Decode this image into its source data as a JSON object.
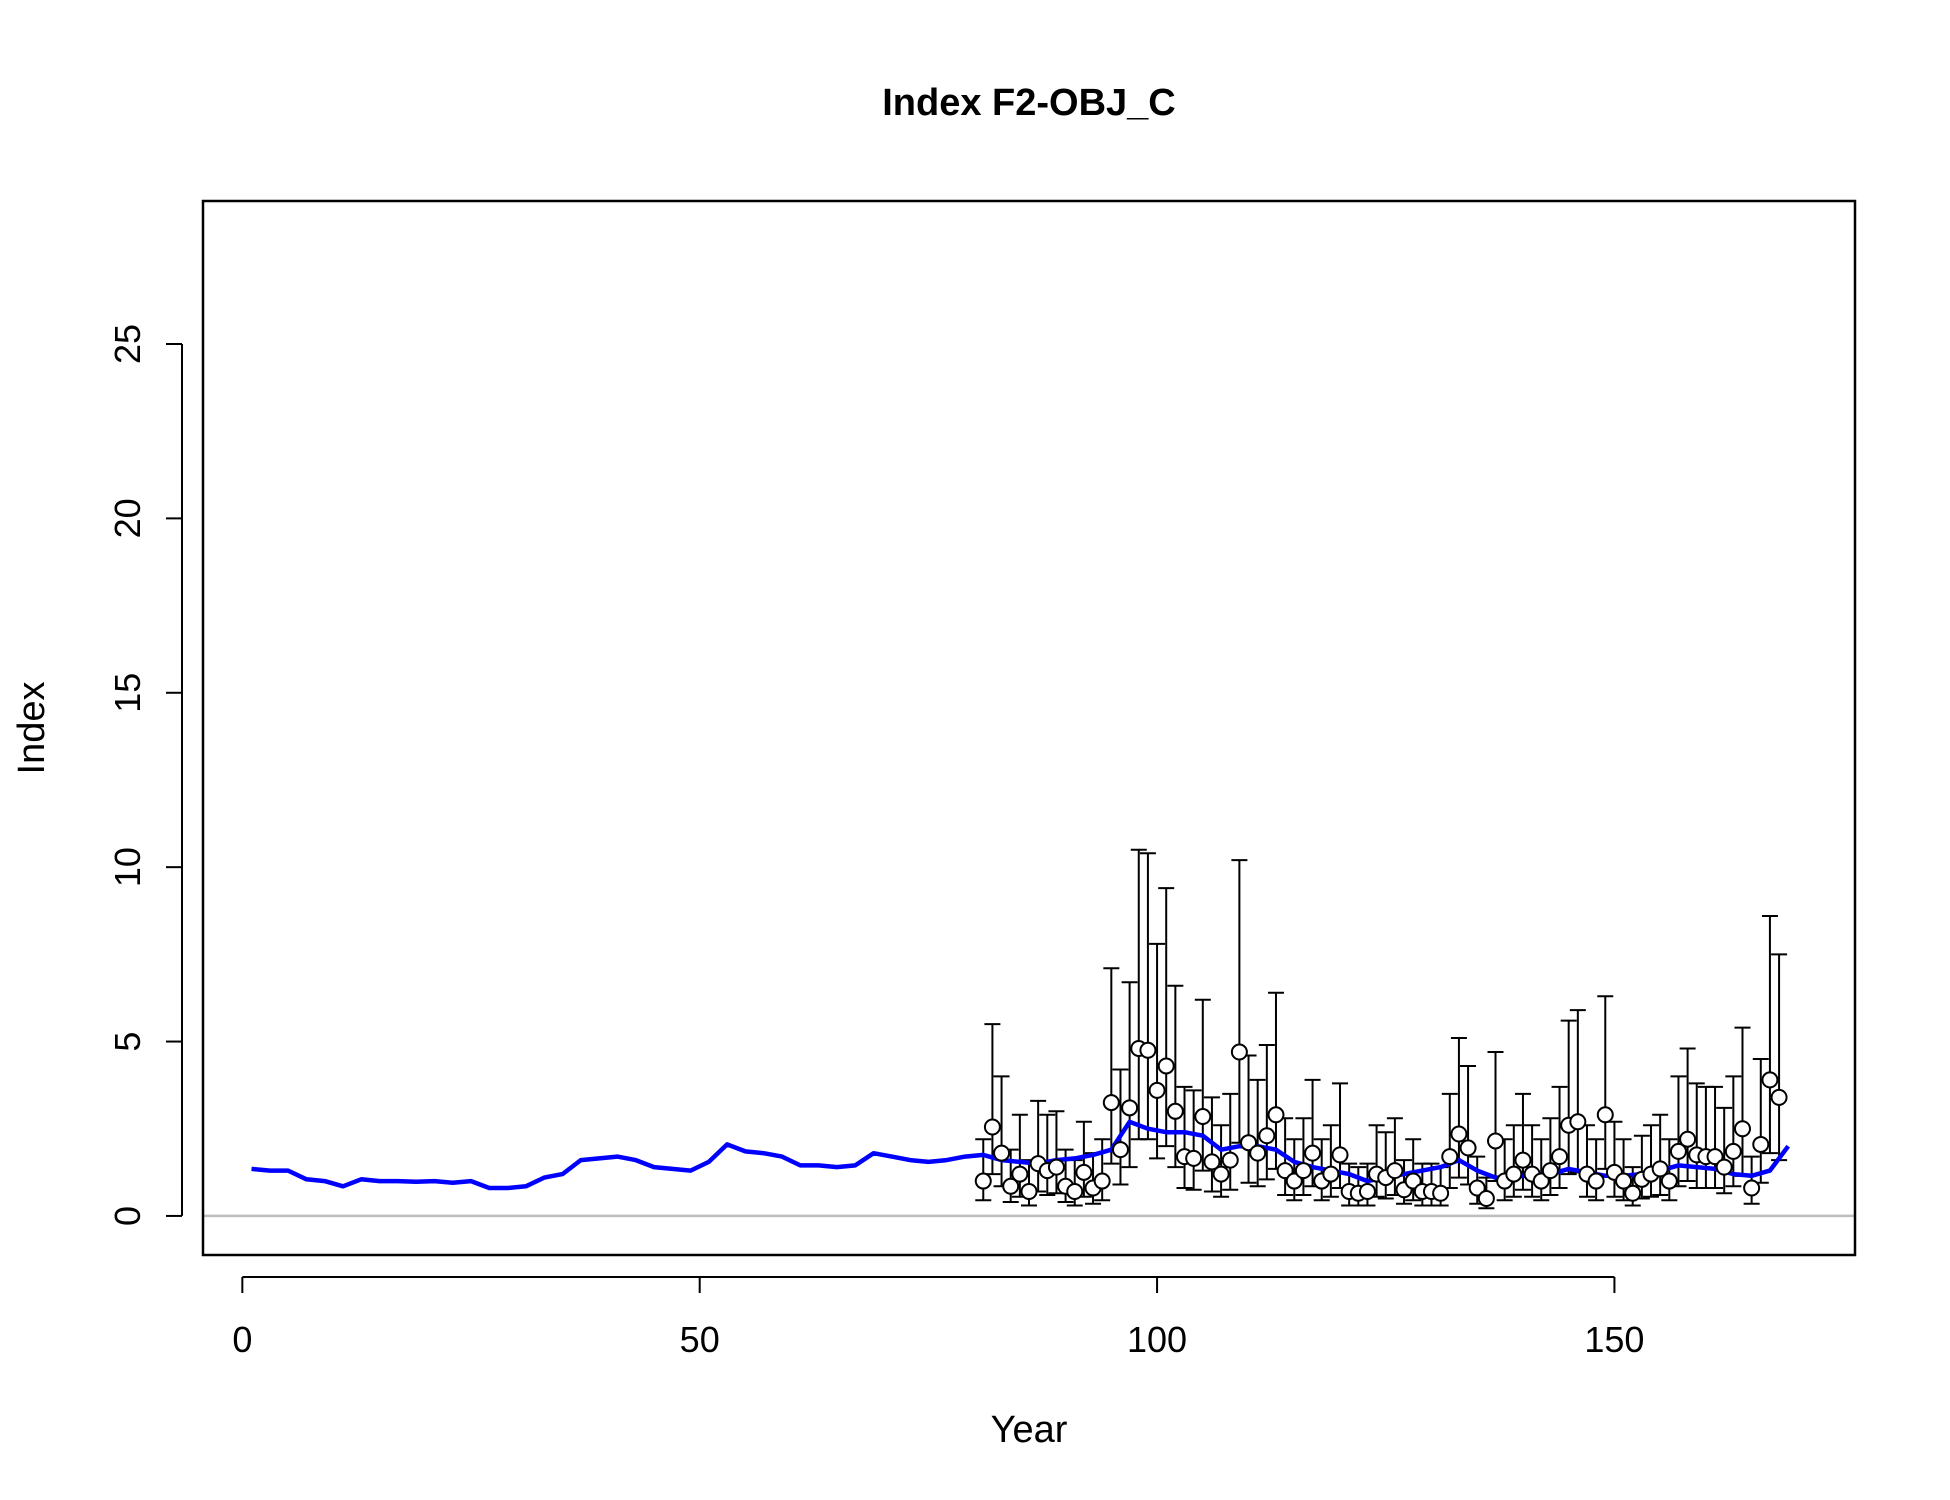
{
  "chart_data": {
    "type": "line",
    "title": "Index F2-OBJ_C",
    "xlabel": "Year",
    "ylabel": "Index",
    "xlim": [
      -4.3,
      176.3
    ],
    "ylim": [
      -1.12,
      29.1
    ],
    "x_ticks": [
      0,
      50,
      100,
      150
    ],
    "y_ticks": [
      0,
      5,
      10,
      15,
      20,
      25
    ],
    "x_tick_labels": [
      "0",
      "50",
      "100",
      "150"
    ],
    "y_tick_labels": [
      "0",
      "5",
      "10",
      "15",
      "20",
      "25"
    ],
    "grid": false,
    "legend": "none",
    "colors": {
      "fitted_line": "#0000ff",
      "zero_line": "#bebebe",
      "points": "#000000",
      "point_fill": "#ffffff"
    },
    "reference_line_y": 0,
    "fitted_line": {
      "x": [
        1,
        3,
        5,
        7,
        9,
        11,
        13,
        15,
        17,
        19,
        21,
        23,
        25,
        27,
        29,
        31,
        33,
        35,
        37,
        39,
        41,
        43,
        45,
        47,
        49,
        51,
        53,
        55,
        57,
        59,
        61,
        63,
        65,
        67,
        69,
        71,
        73,
        75,
        77,
        79,
        81,
        83,
        85,
        87,
        89,
        91,
        93,
        95,
        97,
        99,
        101,
        103,
        105,
        107,
        109,
        111,
        113,
        115,
        117,
        119,
        121,
        123,
        125,
        127,
        129,
        131,
        133,
        135,
        137,
        139,
        141,
        143,
        145,
        147,
        149,
        151,
        153,
        155,
        157,
        159,
        161,
        163,
        165,
        167,
        169
      ],
      "y": [
        1.35,
        1.3,
        1.3,
        1.05,
        1.0,
        0.85,
        1.05,
        1.0,
        1.0,
        0.98,
        1.0,
        0.95,
        1.0,
        0.8,
        0.8,
        0.85,
        1.1,
        1.2,
        1.6,
        1.65,
        1.7,
        1.6,
        1.4,
        1.35,
        1.3,
        1.55,
        2.05,
        1.85,
        1.8,
        1.7,
        1.45,
        1.45,
        1.4,
        1.45,
        1.8,
        1.7,
        1.6,
        1.55,
        1.6,
        1.7,
        1.75,
        1.6,
        1.55,
        1.5,
        1.6,
        1.65,
        1.75,
        1.9,
        2.7,
        2.5,
        2.4,
        2.4,
        2.3,
        1.9,
        2.0,
        2.0,
        1.9,
        1.55,
        1.4,
        1.3,
        1.2,
        1.0,
        1.1,
        1.2,
        1.3,
        1.4,
        1.6,
        1.3,
        1.1,
        1.1,
        1.2,
        1.2,
        1.35,
        1.25,
        1.15,
        1.15,
        1.2,
        1.3,
        1.45,
        1.4,
        1.35,
        1.2,
        1.15,
        1.3,
        2.0
      ]
    },
    "observations": {
      "x": [
        81,
        82,
        83,
        84,
        85,
        86,
        87,
        88,
        89,
        90,
        91,
        92,
        93,
        94,
        95,
        96,
        97,
        98,
        99,
        100,
        101,
        102,
        103,
        104,
        105,
        106,
        107,
        108,
        109,
        110,
        111,
        112,
        113,
        114,
        115,
        116,
        117,
        118,
        119,
        120,
        121,
        122,
        123,
        124,
        125,
        126,
        127,
        128,
        129,
        130,
        131,
        132,
        133,
        134,
        135,
        136,
        137,
        138,
        139,
        140,
        141,
        142,
        143,
        144,
        145,
        146,
        147,
        148,
        149,
        150,
        151,
        152,
        153,
        154,
        155,
        156,
        157,
        158,
        159,
        160,
        161,
        162,
        163,
        164,
        165,
        166,
        167,
        168
      ],
      "y": [
        1.0,
        2.55,
        1.8,
        0.85,
        1.2,
        0.7,
        1.5,
        1.3,
        1.4,
        0.85,
        0.7,
        1.25,
        0.8,
        1.0,
        3.25,
        1.9,
        3.1,
        4.8,
        4.75,
        3.6,
        4.3,
        3.0,
        1.7,
        1.65,
        2.85,
        1.55,
        1.2,
        1.6,
        4.7,
        2.1,
        1.8,
        2.3,
        2.9,
        1.3,
        1.0,
        1.3,
        1.8,
        1.0,
        1.2,
        1.75,
        0.7,
        0.65,
        0.7,
        1.2,
        1.1,
        1.3,
        0.75,
        1.0,
        0.7,
        0.7,
        0.65,
        1.7,
        2.35,
        1.95,
        0.8,
        0.5,
        2.15,
        1.0,
        1.2,
        1.6,
        1.2,
        1.0,
        1.3,
        1.7,
        2.6,
        2.7,
        1.2,
        1.0,
        2.9,
        1.25,
        1.0,
        0.65,
        1.05,
        1.2,
        1.35,
        1.0,
        1.85,
        2.2,
        1.75,
        1.7,
        1.7,
        1.4,
        1.85,
        2.5,
        0.8,
        2.05,
        3.9,
        3.4
      ],
      "upper": [
        2.2,
        5.5,
        4.0,
        1.9,
        2.9,
        1.6,
        3.3,
        2.9,
        3.0,
        1.9,
        1.6,
        2.7,
        1.8,
        2.2,
        7.1,
        4.2,
        6.7,
        10.5,
        10.4,
        7.8,
        9.4,
        6.6,
        3.7,
        3.6,
        6.2,
        3.4,
        2.6,
        3.5,
        10.2,
        4.6,
        3.9,
        4.9,
        6.4,
        2.8,
        2.2,
        2.8,
        3.9,
        2.2,
        2.6,
        3.8,
        1.5,
        1.4,
        1.5,
        2.6,
        2.4,
        2.8,
        1.6,
        2.2,
        1.5,
        1.5,
        1.4,
        3.5,
        5.1,
        4.3,
        1.7,
        1.1,
        4.7,
        2.2,
        2.6,
        3.5,
        2.6,
        2.2,
        2.8,
        3.7,
        5.6,
        5.9,
        2.6,
        2.2,
        6.3,
        2.7,
        2.2,
        1.4,
        2.3,
        2.6,
        2.9,
        2.2,
        4.0,
        4.8,
        3.8,
        3.7,
        3.7,
        3.1,
        4.0,
        5.4,
        1.7,
        4.5,
        8.6,
        7.5
      ],
      "lower": [
        0.45,
        1.2,
        0.85,
        0.4,
        0.55,
        0.3,
        0.7,
        0.6,
        0.65,
        0.4,
        0.3,
        0.55,
        0.35,
        0.45,
        1.5,
        0.9,
        1.4,
        2.2,
        2.2,
        1.65,
        2.0,
        1.4,
        0.8,
        0.75,
        1.3,
        0.7,
        0.55,
        0.75,
        2.1,
        0.95,
        0.85,
        1.05,
        1.35,
        0.6,
        0.45,
        0.6,
        0.85,
        0.45,
        0.55,
        0.8,
        0.3,
        0.3,
        0.3,
        0.55,
        0.5,
        0.6,
        0.35,
        0.45,
        0.3,
        0.3,
        0.3,
        0.8,
        1.1,
        0.9,
        0.35,
        0.22,
        1.0,
        0.45,
        0.55,
        0.75,
        0.55,
        0.45,
        0.6,
        0.8,
        1.2,
        1.25,
        0.55,
        0.45,
        1.35,
        0.55,
        0.45,
        0.3,
        0.5,
        0.55,
        0.6,
        0.45,
        0.85,
        1.0,
        0.8,
        0.8,
        0.8,
        0.65,
        0.85,
        1.15,
        0.35,
        0.95,
        1.8,
        1.6
      ]
    }
  }
}
